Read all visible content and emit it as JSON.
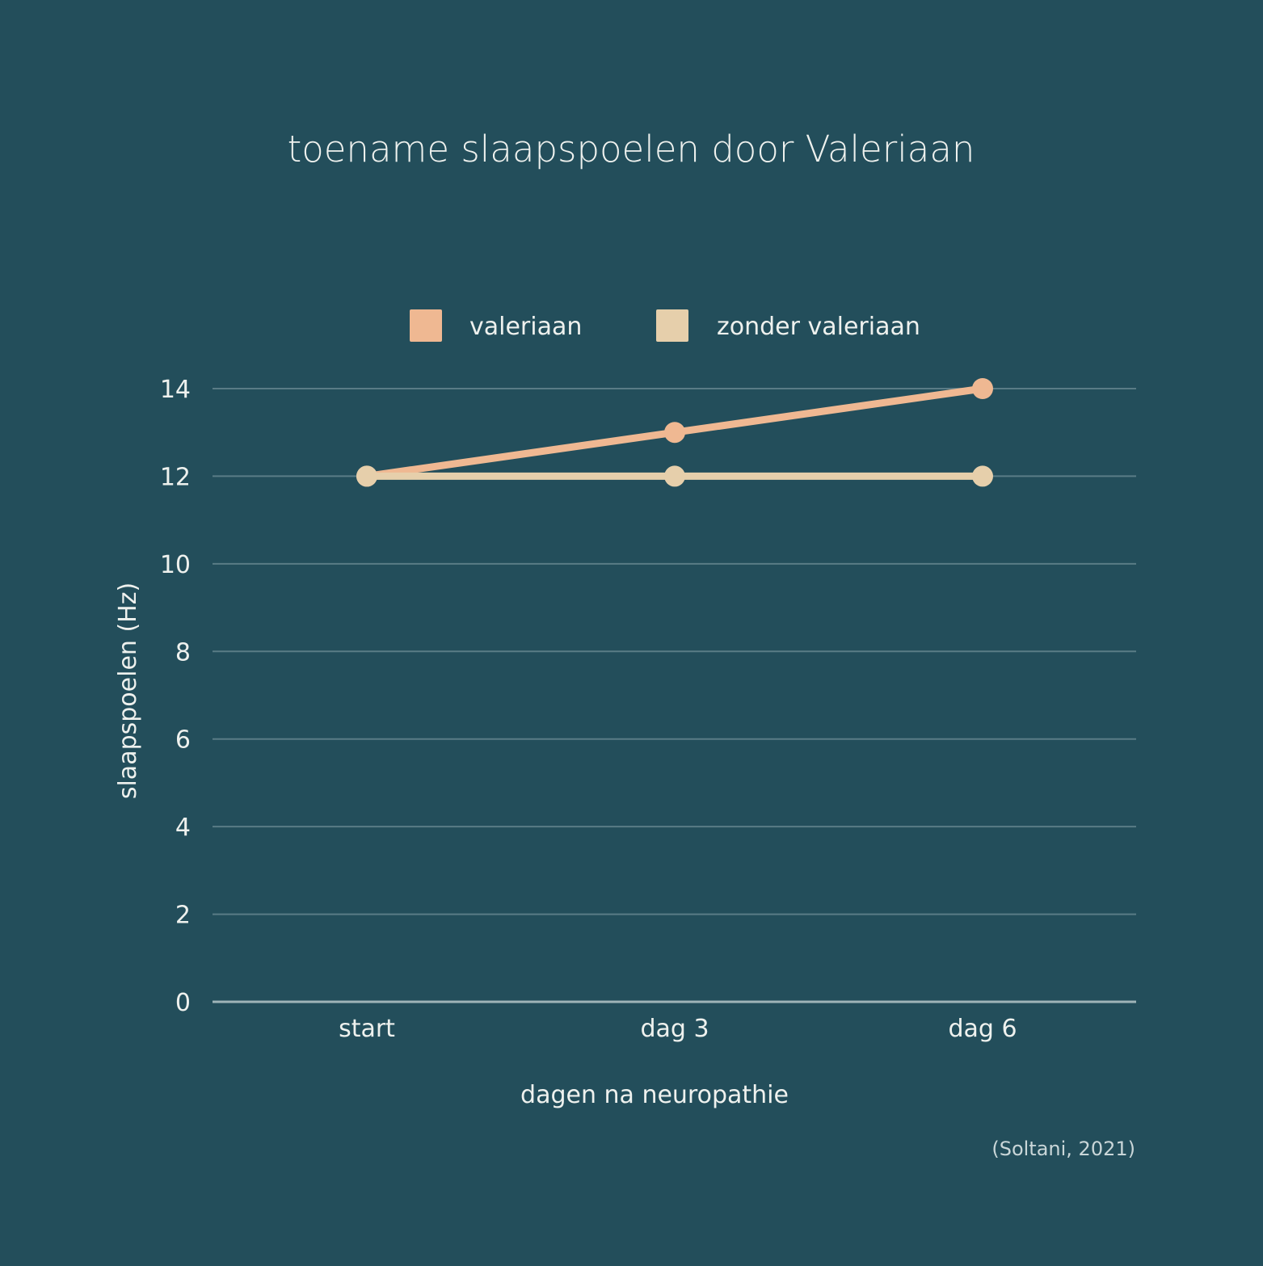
{
  "colors": {
    "background": "#234e5b",
    "text": "#eef1ee",
    "grid": "#5a7c86",
    "baseline": "#9fb4b8",
    "valeriaan": "#efb892",
    "zonder_valeriaan": "#e6cfab"
  },
  "chart_data": {
    "type": "line",
    "title": "toename slaapspoelen door Valeriaan",
    "xlabel": "dagen na neuropathie",
    "ylabel": "slaapspoelen (Hz)",
    "categories": [
      "start",
      "dag 3",
      "dag 6"
    ],
    "yticks": [
      "0",
      "2",
      "4",
      "6",
      "8",
      "10",
      "12",
      "14"
    ],
    "ylim": [
      0,
      14
    ],
    "grid": true,
    "legend_position": "top-center",
    "series": [
      {
        "name": "valeriaan",
        "values": [
          12,
          13,
          14
        ],
        "color": "#efb892"
      },
      {
        "name": "zonder valeriaan",
        "values": [
          12,
          12,
          12
        ],
        "color": "#e6cfab"
      }
    ],
    "source_note": "(Soltani, 2021)"
  }
}
